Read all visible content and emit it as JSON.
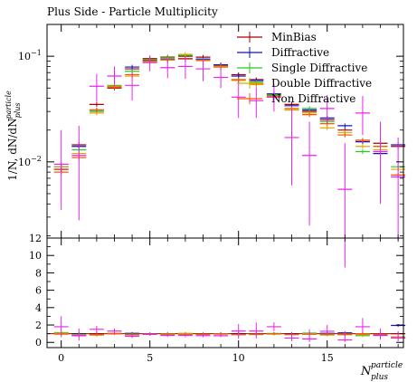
{
  "chart_data": {
    "type": "scatter",
    "title": "Plus Side - Particle Multiplicity",
    "ylabel_main": "1/N, dN/dN",
    "ylabel_sup": "particle",
    "ylabel_sub": "plus",
    "xlabel_main": "N",
    "xlabel_sup": "particle",
    "xlabel_sub": "plus",
    "xlim": [
      -0.8,
      19.3
    ],
    "ylim": [
      0.0019,
      0.2
    ],
    "yscale": "log",
    "ratio_ylim": [
      -0.6,
      12
    ],
    "main_ticks": [
      {
        "value": 0.1,
        "base": "10",
        "exp": "−1"
      },
      {
        "value": 0.01,
        "base": "10",
        "exp": "−2"
      }
    ],
    "x_ticks": [
      "0",
      "5",
      "10",
      "15"
    ],
    "x_tick_values": [
      0,
      5,
      10,
      15
    ],
    "ratio_ticks": [
      "0",
      "2",
      "4",
      "6",
      "8",
      "10",
      "12"
    ],
    "ratio_tick_values": [
      0,
      2,
      4,
      6,
      8,
      10,
      12
    ],
    "legend_position": "top-right",
    "series": [
      {
        "name": "MinBias",
        "color": "#aa0000",
        "values": [
          0.0085,
          0.0145,
          0.035,
          0.05,
          0.076,
          0.095,
          0.098,
          0.1,
          0.098,
          0.082,
          0.067,
          0.06,
          0.043,
          0.035,
          0.03,
          0.025,
          0.02,
          0.016,
          0.015,
          0.014
        ],
        "ratio": [
          1,
          1,
          1,
          1,
          1,
          1,
          1,
          1,
          1,
          1,
          1,
          1,
          1,
          1,
          1,
          1,
          1,
          1,
          1,
          1
        ]
      },
      {
        "name": "Diffractive",
        "color": "#1010cc",
        "values": [
          0.009,
          0.014,
          0.031,
          0.052,
          0.079,
          0.091,
          0.094,
          0.095,
          0.094,
          0.083,
          0.065,
          0.059,
          0.044,
          0.034,
          0.031,
          0.026,
          0.022,
          0.0155,
          0.012,
          0.0145
        ],
        "ratio": [
          1.06,
          0.97,
          0.89,
          1.04,
          1.04,
          0.96,
          0.96,
          0.95,
          0.96,
          1.01,
          0.97,
          0.98,
          1.02,
          0.97,
          1.03,
          1.04,
          1.1,
          0.97,
          0.8,
          1.95
        ]
      },
      {
        "name": "Single Diffractive",
        "color": "#22cc22",
        "values": [
          0.0095,
          0.013,
          0.03,
          0.053,
          0.072,
          0.093,
          0.097,
          0.102,
          0.092,
          0.079,
          0.06,
          0.057,
          0.043,
          0.031,
          0.032,
          0.024,
          0.018,
          0.0125,
          0.014,
          0.009
        ],
        "ratio": [
          1.12,
          0.9,
          0.86,
          1.06,
          0.95,
          0.98,
          0.99,
          1.02,
          0.94,
          0.96,
          0.9,
          0.95,
          1.0,
          0.89,
          1.07,
          0.96,
          0.9,
          0.78,
          0.93,
          0.64
        ]
      },
      {
        "name": "Double Diffractive",
        "color": "#ddaa00",
        "values": [
          0.009,
          0.012,
          0.029,
          0.052,
          0.065,
          0.088,
          0.092,
          0.104,
          0.091,
          0.08,
          0.059,
          0.054,
          0.041,
          0.031,
          0.029,
          0.021,
          0.019,
          0.014,
          0.013,
          0.0085
        ],
        "ratio": [
          1.06,
          0.83,
          0.83,
          1.04,
          0.86,
          0.93,
          0.94,
          1.04,
          0.93,
          0.98,
          0.88,
          0.9,
          0.95,
          0.89,
          0.97,
          0.84,
          0.95,
          0.88,
          0.87,
          0.61
        ]
      },
      {
        "name": "Non Diffractive",
        "color": "#ff5500",
        "values": [
          0.008,
          0.011,
          0.031,
          0.051,
          0.067,
          0.09,
          0.093,
          0.094,
          0.091,
          0.079,
          0.06,
          0.055,
          0.042,
          0.032,
          0.028,
          0.023,
          0.018,
          0.016,
          0.014,
          0.0075
        ],
        "ratio": [
          0.94,
          0.76,
          0.89,
          1.02,
          0.88,
          0.95,
          0.95,
          0.94,
          0.93,
          0.96,
          0.9,
          0.92,
          0.98,
          0.91,
          0.93,
          0.92,
          0.9,
          1.0,
          0.93,
          0.54
        ]
      },
      {
        "name": "",
        "color": "#ee22ee",
        "values": [
          0.0095,
          0.0115,
          0.052,
          0.065,
          0.053,
          0.087,
          0.078,
          0.08,
          0.076,
          0.063,
          0.041,
          0.038,
          0.041,
          0.017,
          0.0115,
          0.032,
          0.0055,
          0.029,
          0.0125,
          0.0072
        ],
        "low": [
          0.0035,
          0.0028,
          0.037,
          0.052,
          0.038,
          0.072,
          0.062,
          0.061,
          0.058,
          0.05,
          0.026,
          0.026,
          0.03,
          0.006,
          0.0025,
          0.023,
          0.001,
          0.018,
          0.004,
          0.0018
        ],
        "high": [
          0.02,
          0.022,
          0.068,
          0.08,
          0.071,
          0.102,
          0.095,
          0.098,
          0.096,
          0.078,
          0.06,
          0.051,
          0.055,
          0.032,
          0.024,
          0.043,
          0.015,
          0.042,
          0.024,
          0.017
        ],
        "ratio": [
          1.8,
          0.79,
          1.5,
          1.3,
          0.7,
          0.92,
          0.8,
          0.8,
          0.78,
          0.77,
          1.3,
          1.3,
          1.8,
          0.5,
          0.4,
          1.28,
          0.28,
          1.8,
          0.83,
          0.51
        ],
        "ratio_low": [
          0.6,
          0.2,
          1.05,
          1.0,
          0.5,
          0.76,
          0.64,
          0.6,
          0.6,
          0.6,
          0.4,
          0.45,
          1.3,
          0.15,
          0.05,
          0.9,
          0.05,
          1.1,
          0.3,
          0.12
        ],
        "ratio_high": [
          3.0,
          1.6,
          1.9,
          1.6,
          0.95,
          1.07,
          0.97,
          0.98,
          0.98,
          0.95,
          2.1,
          2.3,
          2.3,
          1.0,
          1.5,
          2.0,
          1.3,
          2.8,
          1.6,
          1.3
        ]
      }
    ]
  }
}
